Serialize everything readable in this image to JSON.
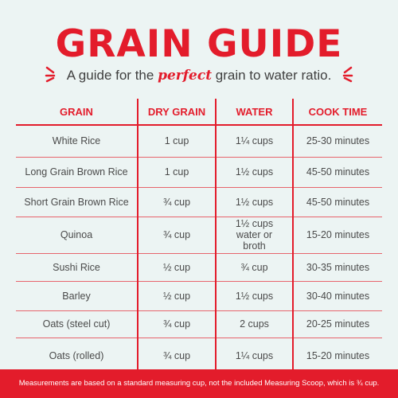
{
  "header": {
    "title": "GRAIN GUIDE",
    "subtitle_before": "A guide for the ",
    "subtitle_emphasis": "perfect",
    "subtitle_after": " grain to water ratio."
  },
  "table": {
    "columns": [
      "GRAIN",
      "DRY GRAIN",
      "WATER",
      "COOK TIME"
    ],
    "rows": [
      [
        "White Rice",
        "1 cup",
        "1¼ cups",
        "25-30 minutes"
      ],
      [
        "Long Grain Brown Rice",
        "1 cup",
        "1½ cups",
        "45-50 minutes"
      ],
      [
        "Short Grain Brown Rice",
        "¾ cup",
        "1½ cups",
        "45-50 minutes"
      ],
      [
        "Quinoa",
        "¾ cup",
        "1½ cups water or broth",
        "15-20 minutes"
      ],
      [
        "Sushi Rice",
        "½ cup",
        "¾ cup",
        "30-35 minutes"
      ],
      [
        "Barley",
        "½ cup",
        "1½ cups",
        "30-40 minutes"
      ],
      [
        "Oats (steel cut)",
        "¾ cup",
        "2 cups",
        "20-25 minutes"
      ],
      [
        "Oats (rolled)",
        "¾ cup",
        "1¼ cups",
        "15-20 minutes"
      ]
    ]
  },
  "footer": {
    "note": "Measurements are based on a standard measuring cup, not the included Measuring Scoop, which is ¾ cup."
  },
  "colors": {
    "accent": "#e31c2b",
    "background": "#ecf4f3",
    "text": "#4a4a4a"
  }
}
